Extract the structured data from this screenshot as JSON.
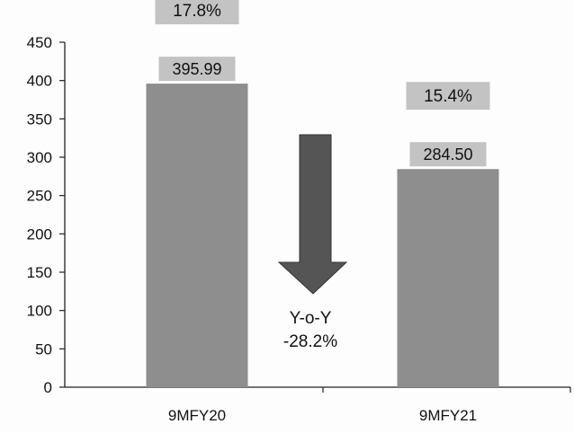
{
  "chart_data": {
    "type": "bar",
    "categories": [
      "9MFY20",
      "9MFY21"
    ],
    "values": [
      395.99,
      284.5
    ],
    "value_labels": [
      "395.99",
      "284.50"
    ],
    "percent_labels": [
      "17.8%",
      "15.4%"
    ],
    "ylim": [
      0,
      450
    ],
    "yticks": [
      0,
      50,
      100,
      150,
      200,
      250,
      300,
      350,
      400,
      450
    ],
    "grid": false,
    "annotation": {
      "line1": "Y-o-Y",
      "line2": "-28.2%"
    },
    "colors": {
      "bar": "#8e8e8e",
      "label_box": "#c3c3c3",
      "arrow": "#555555",
      "axis": "#222222",
      "text": "#111111"
    }
  }
}
